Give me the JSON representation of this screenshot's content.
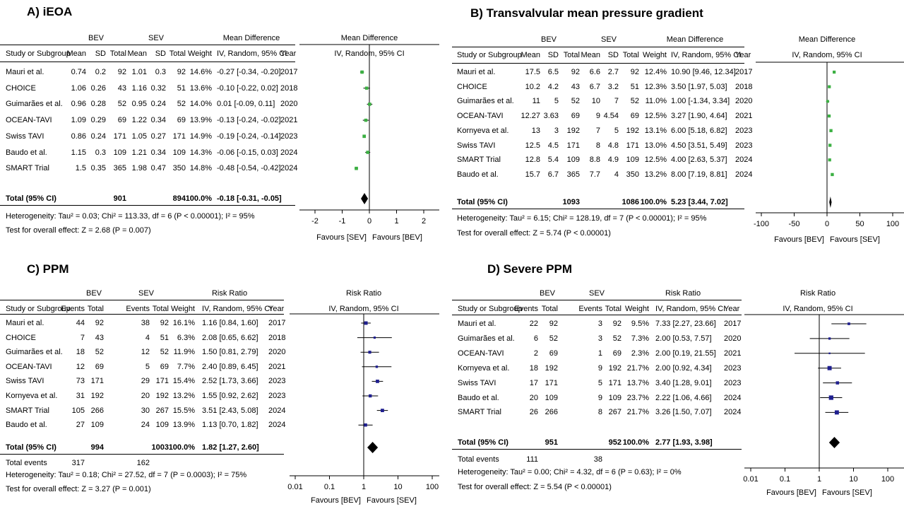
{
  "chart_data": [
    {
      "type": "forest",
      "title": "A) iEOA",
      "effect_label": "Mean Difference",
      "effect_method": "IV, Random, 95% CI",
      "groups": [
        "BEV",
        "SEV"
      ],
      "columns": [
        "Study or Subgroup",
        "Mean",
        "SD",
        "Total",
        "Mean",
        "SD",
        "Total",
        "Weight",
        "IV, Random, 95% CI",
        "Year"
      ],
      "studies": [
        {
          "name": "Mauri et al.",
          "cells": [
            "0.74",
            "0.2",
            "92",
            "1.01",
            "0.3",
            "92",
            "14.6%",
            "-0.27 [-0.34, -0.20]",
            "2017"
          ],
          "est": -0.27,
          "lo": -0.34,
          "hi": -0.2,
          "w": 14.6
        },
        {
          "name": "CHOICE",
          "cells": [
            "1.06",
            "0.26",
            "43",
            "1.16",
            "0.32",
            "51",
            "13.6%",
            "-0.10 [-0.22, 0.02]",
            "2018"
          ],
          "est": -0.1,
          "lo": -0.22,
          "hi": 0.02,
          "w": 13.6
        },
        {
          "name": "Guimarães et al.",
          "cells": [
            "0.96",
            "0.28",
            "52",
            "0.95",
            "0.24",
            "52",
            "14.0%",
            "0.01 [-0.09, 0.11]",
            "2020"
          ],
          "est": 0.01,
          "lo": -0.09,
          "hi": 0.11,
          "w": 14.0
        },
        {
          "name": "OCEAN-TAVI",
          "cells": [
            "1.09",
            "0.29",
            "69",
            "1.22",
            "0.34",
            "69",
            "13.9%",
            "-0.13 [-0.24, -0.02]",
            "2021"
          ],
          "est": -0.13,
          "lo": -0.24,
          "hi": -0.02,
          "w": 13.9
        },
        {
          "name": "Swiss TAVI",
          "cells": [
            "0.86",
            "0.24",
            "171",
            "1.05",
            "0.27",
            "171",
            "14.9%",
            "-0.19 [-0.24, -0.14]",
            "2023"
          ],
          "est": -0.19,
          "lo": -0.24,
          "hi": -0.14,
          "w": 14.9
        },
        {
          "name": "Baudo et al.",
          "cells": [
            "1.15",
            "0.3",
            "109",
            "1.21",
            "0.34",
            "109",
            "14.3%",
            "-0.06 [-0.15, 0.03]",
            "2024"
          ],
          "est": -0.06,
          "lo": -0.15,
          "hi": 0.03,
          "w": 14.3
        },
        {
          "name": "SMART Trial",
          "cells": [
            "1.5",
            "0.35",
            "365",
            "1.98",
            "0.47",
            "350",
            "14.8%",
            "-0.48 [-0.54, -0.42]",
            "2024"
          ],
          "est": -0.48,
          "lo": -0.54,
          "hi": -0.42,
          "w": 14.8
        }
      ],
      "total": {
        "label": "Total (95% CI)",
        "n1": "901",
        "n2": "894",
        "weight": "100.0%",
        "ci": "-0.18 [-0.31, -0.05]",
        "est": -0.18,
        "lo": -0.31,
        "hi": -0.05
      },
      "heterogeneity": "Heterogeneity: Tau² = 0.03; Chi² = 113.33, df = 6 (P < 0.00001); I² = 95%",
      "overall_test": "Test for overall effect: Z = 2.68 (P = 0.007)",
      "scale": "linear",
      "axis_range": [
        -2,
        2
      ],
      "ticks": [
        -2,
        -1,
        0,
        1,
        2
      ],
      "tick_labels": [
        "-2",
        "-1",
        "0",
        "1",
        "2"
      ],
      "favours_left": "Favours [SEV]",
      "favours_right": "Favours [BEV]",
      "marker_color": "#3cb043"
    },
    {
      "type": "forest",
      "title": "B) Transvalvular  mean pressure  gradient",
      "effect_label": "Mean Difference",
      "effect_method": "IV, Random, 95% CI",
      "groups": [
        "BEV",
        "SEV"
      ],
      "columns": [
        "Study or Subgroup",
        "Mean",
        "SD",
        "Total",
        "Mean",
        "SD",
        "Total",
        "Weight",
        "IV, Random, 95% CI",
        "Year"
      ],
      "studies": [
        {
          "name": "Mauri et al.",
          "cells": [
            "17.5",
            "6.5",
            "92",
            "6.6",
            "2.7",
            "92",
            "12.4%",
            "10.90 [9.46, 12.34]",
            "2017"
          ],
          "est": 10.9,
          "lo": 9.46,
          "hi": 12.34,
          "w": 12.4
        },
        {
          "name": "CHOICE",
          "cells": [
            "10.2",
            "4.2",
            "43",
            "6.7",
            "3.2",
            "51",
            "12.3%",
            "3.50 [1.97, 5.03]",
            "2018"
          ],
          "est": 3.5,
          "lo": 1.97,
          "hi": 5.03,
          "w": 12.3
        },
        {
          "name": "Guimarães et al.",
          "cells": [
            "11",
            "5",
            "52",
            "10",
            "7",
            "52",
            "11.0%",
            "1.00 [-1.34, 3.34]",
            "2020"
          ],
          "est": 1.0,
          "lo": -1.34,
          "hi": 3.34,
          "w": 11.0
        },
        {
          "name": "OCEAN-TAVI",
          "cells": [
            "12.27",
            "3.63",
            "69",
            "9",
            "4.54",
            "69",
            "12.5%",
            "3.27 [1.90, 4.64]",
            "2021"
          ],
          "est": 3.27,
          "lo": 1.9,
          "hi": 4.64,
          "w": 12.5
        },
        {
          "name": "Kornyeva et al.",
          "cells": [
            "13",
            "3",
            "192",
            "7",
            "5",
            "192",
            "13.1%",
            "6.00 [5.18, 6.82]",
            "2023"
          ],
          "est": 6.0,
          "lo": 5.18,
          "hi": 6.82,
          "w": 13.1
        },
        {
          "name": "Swiss TAVI",
          "cells": [
            "12.5",
            "4.5",
            "171",
            "8",
            "4.8",
            "171",
            "13.0%",
            "4.50 [3.51, 5.49]",
            "2023"
          ],
          "est": 4.5,
          "lo": 3.51,
          "hi": 5.49,
          "w": 13.0
        },
        {
          "name": "SMART Trial",
          "cells": [
            "12.8",
            "5.4",
            "109",
            "8.8",
            "4.9",
            "109",
            "12.5%",
            "4.00 [2.63, 5.37]",
            "2024"
          ],
          "est": 4.0,
          "lo": 2.63,
          "hi": 5.37,
          "w": 12.5
        },
        {
          "name": "Baudo et al.",
          "cells": [
            "15.7",
            "6.7",
            "365",
            "7.7",
            "4",
            "350",
            "13.2%",
            "8.00 [7.19, 8.81]",
            "2024"
          ],
          "est": 8.0,
          "lo": 7.19,
          "hi": 8.81,
          "w": 13.2
        }
      ],
      "total": {
        "label": "Total (95% CI)",
        "n1": "1093",
        "n2": "1086",
        "weight": "100.0%",
        "ci": "5.23 [3.44, 7.02]",
        "est": 5.23,
        "lo": 3.44,
        "hi": 7.02
      },
      "heterogeneity": "Heterogeneity: Tau² = 6.15; Chi² = 128.19, df = 7 (P < 0.00001); I² = 95%",
      "overall_test": "Test for overall effect: Z = 5.74 (P < 0.00001)",
      "scale": "linear",
      "axis_range": [
        -100,
        100
      ],
      "ticks": [
        -100,
        -50,
        0,
        50,
        100
      ],
      "tick_labels": [
        "-100",
        "-50",
        "0",
        "50",
        "100"
      ],
      "favours_left": "Favours [BEV]",
      "favours_right": "Favours [SEV]",
      "marker_color": "#3cb043"
    },
    {
      "type": "forest",
      "title": "C) PPM",
      "effect_label": "Risk Ratio",
      "effect_method": "IV, Random, 95% CI",
      "groups": [
        "BEV",
        "SEV"
      ],
      "columns": [
        "Study or Subgroup",
        "Events",
        "Total",
        "Events",
        "Total",
        "Weight",
        "IV, Random, 95% CI",
        "Year"
      ],
      "studies": [
        {
          "name": "Mauri et al.",
          "cells": [
            "44",
            "92",
            "38",
            "92",
            "16.1%",
            "1.16 [0.84, 1.60]",
            "2017"
          ],
          "est": 1.16,
          "lo": 0.84,
          "hi": 1.6,
          "w": 16.1
        },
        {
          "name": "CHOICE",
          "cells": [
            "7",
            "43",
            "4",
            "51",
            "6.3%",
            "2.08 [0.65, 6.62]",
            "2018"
          ],
          "est": 2.08,
          "lo": 0.65,
          "hi": 6.62,
          "w": 6.3
        },
        {
          "name": "Guimarães et al.",
          "cells": [
            "18",
            "52",
            "12",
            "52",
            "11.9%",
            "1.50 [0.81, 2.79]",
            "2020"
          ],
          "est": 1.5,
          "lo": 0.81,
          "hi": 2.79,
          "w": 11.9
        },
        {
          "name": "OCEAN-TAVI",
          "cells": [
            "12",
            "69",
            "5",
            "69",
            "7.7%",
            "2.40 [0.89, 6.45]",
            "2021"
          ],
          "est": 2.4,
          "lo": 0.89,
          "hi": 6.45,
          "w": 7.7
        },
        {
          "name": "Swiss TAVI",
          "cells": [
            "73",
            "171",
            "29",
            "171",
            "15.4%",
            "2.52 [1.73, 3.66]",
            "2023"
          ],
          "est": 2.52,
          "lo": 1.73,
          "hi": 3.66,
          "w": 15.4
        },
        {
          "name": "Kornyeva et al.",
          "cells": [
            "31",
            "192",
            "20",
            "192",
            "13.2%",
            "1.55 [0.92, 2.62]",
            "2023"
          ],
          "est": 1.55,
          "lo": 0.92,
          "hi": 2.62,
          "w": 13.2
        },
        {
          "name": "SMART Trial",
          "cells": [
            "105",
            "266",
            "30",
            "267",
            "15.5%",
            "3.51 [2.43, 5.08]",
            "2024"
          ],
          "est": 3.51,
          "lo": 2.43,
          "hi": 5.08,
          "w": 15.5
        },
        {
          "name": "Baudo et al.",
          "cells": [
            "27",
            "109",
            "24",
            "109",
            "13.9%",
            "1.13 [0.70, 1.82]",
            "2024"
          ],
          "est": 1.13,
          "lo": 0.7,
          "hi": 1.82,
          "w": 13.9
        }
      ],
      "total": {
        "label": "Total (95% CI)",
        "n1": "994",
        "n2": "1003",
        "weight": "100.0%",
        "ci": "1.82 [1.27, 2.60]",
        "est": 1.82,
        "lo": 1.27,
        "hi": 2.6
      },
      "total_events": {
        "label": "Total events",
        "e1": "317",
        "e2": "162"
      },
      "heterogeneity": "Heterogeneity: Tau² = 0.18; Chi² = 27.52, df = 7 (P = 0.0003); I² = 75%",
      "overall_test": "Test for overall effect: Z = 3.27 (P = 0.001)",
      "scale": "log",
      "axis_range": [
        0.01,
        100
      ],
      "ticks": [
        0.01,
        0.1,
        1,
        10,
        100
      ],
      "tick_labels": [
        "0.01",
        "0.1",
        "1",
        "10",
        "100"
      ],
      "favours_left": "Favours [BEV]",
      "favours_right": "Favours [SEV]",
      "marker_color": "#1f1f8f"
    },
    {
      "type": "forest",
      "title": "D) Severe PPM",
      "effect_label": "Risk Ratio",
      "effect_method": "IV, Random, 95% CI",
      "groups": [
        "BEV",
        "SEV"
      ],
      "columns": [
        "Study or Subgroup",
        "Events",
        "Total",
        "Events",
        "Total",
        "Weight",
        "IV, Random, 95% CI",
        "Year"
      ],
      "studies": [
        {
          "name": "Mauri et al.",
          "cells": [
            "22",
            "92",
            "3",
            "92",
            "9.5%",
            "7.33 [2.27, 23.66]",
            "2017"
          ],
          "est": 7.33,
          "lo": 2.27,
          "hi": 23.66,
          "w": 9.5
        },
        {
          "name": "Guimarães et al.",
          "cells": [
            "6",
            "52",
            "3",
            "52",
            "7.3%",
            "2.00 [0.53, 7.57]",
            "2020"
          ],
          "est": 2.0,
          "lo": 0.53,
          "hi": 7.57,
          "w": 7.3
        },
        {
          "name": "OCEAN-TAVI",
          "cells": [
            "2",
            "69",
            "1",
            "69",
            "2.3%",
            "2.00 [0.19, 21.55]",
            "2021"
          ],
          "est": 2.0,
          "lo": 0.19,
          "hi": 21.55,
          "w": 2.3
        },
        {
          "name": "Kornyeva et al.",
          "cells": [
            "18",
            "192",
            "9",
            "192",
            "21.7%",
            "2.00 [0.92, 4.34]",
            "2023"
          ],
          "est": 2.0,
          "lo": 0.92,
          "hi": 4.34,
          "w": 21.7
        },
        {
          "name": "Swiss TAVI",
          "cells": [
            "17",
            "171",
            "5",
            "171",
            "13.7%",
            "3.40 [1.28, 9.01]",
            "2023"
          ],
          "est": 3.4,
          "lo": 1.28,
          "hi": 9.01,
          "w": 13.7
        },
        {
          "name": "Baudo et al.",
          "cells": [
            "20",
            "109",
            "9",
            "109",
            "23.7%",
            "2.22 [1.06, 4.66]",
            "2024"
          ],
          "est": 2.22,
          "lo": 1.06,
          "hi": 4.66,
          "w": 23.7
        },
        {
          "name": "SMART Trial",
          "cells": [
            "26",
            "266",
            "8",
            "267",
            "21.7%",
            "3.26 [1.50, 7.07]",
            "2024"
          ],
          "est": 3.26,
          "lo": 1.5,
          "hi": 7.07,
          "w": 21.7
        }
      ],
      "total": {
        "label": "Total (95% CI)",
        "n1": "951",
        "n2": "952",
        "weight": "100.0%",
        "ci": "2.77 [1.93, 3.98]",
        "est": 2.77,
        "lo": 1.93,
        "hi": 3.98
      },
      "total_events": {
        "label": "Total events",
        "e1": "111",
        "e2": "38"
      },
      "heterogeneity": "Heterogeneity: Tau² = 0.00; Chi² = 4.32, df = 6 (P = 0.63); I² = 0%",
      "overall_test": "Test for overall effect: Z = 5.54 (P < 0.00001)",
      "scale": "log",
      "axis_range": [
        0.01,
        100
      ],
      "ticks": [
        0.01,
        0.1,
        1,
        10,
        100
      ],
      "tick_labels": [
        "0.01",
        "0.1",
        "1",
        "10",
        "100"
      ],
      "favours_left": "Favours [BEV]",
      "favours_right": "Favours [SEV]",
      "marker_color": "#1f1f8f"
    }
  ]
}
